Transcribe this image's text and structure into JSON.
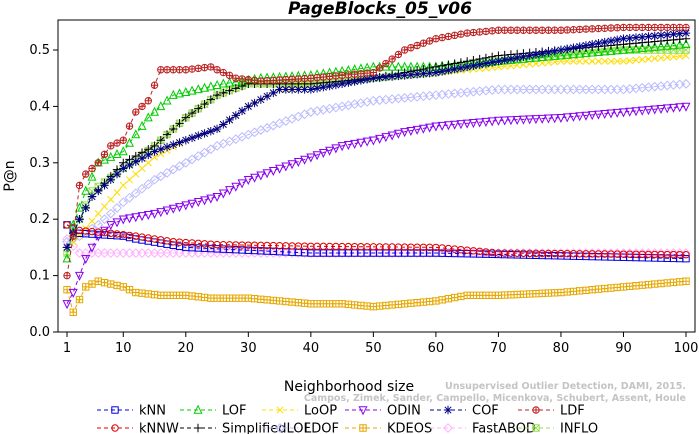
{
  "chart_data": {
    "type": "line",
    "title": "PageBlocks_05_v06",
    "xlabel": "Neighborhood size",
    "ylabel": "P@n",
    "xlim": [
      1,
      100
    ],
    "ylim": [
      0,
      0.55
    ],
    "x_ticks": [
      "1",
      "10",
      "20",
      "30",
      "40",
      "50",
      "60",
      "70",
      "80",
      "90",
      "100"
    ],
    "y_ticks": [
      "0.0",
      "0.1",
      "0.2",
      "0.3",
      "0.4",
      "0.5"
    ],
    "watermark": [
      "Unsupervised Outlier Detection, DAMI, 2015.",
      "Campos, Zimek, Sander, Campello, Micenkova, Schubert, Assent, Houle"
    ],
    "series": [
      {
        "name": "kNN",
        "color": "#0000dd",
        "marker": "square",
        "anchors": [
          [
            1,
            0.19
          ],
          [
            3,
            0.175
          ],
          [
            10,
            0.17
          ],
          [
            12,
            0.165
          ],
          [
            20,
            0.15
          ],
          [
            30,
            0.145
          ],
          [
            40,
            0.14
          ],
          [
            60,
            0.14
          ],
          [
            80,
            0.135
          ],
          [
            100,
            0.13
          ]
        ]
      },
      {
        "name": "kNNW",
        "color": "#dd0000",
        "marker": "circle",
        "anchors": [
          [
            1,
            0.19
          ],
          [
            3,
            0.18
          ],
          [
            8,
            0.175
          ],
          [
            12,
            0.17
          ],
          [
            18,
            0.16
          ],
          [
            25,
            0.155
          ],
          [
            40,
            0.152
          ],
          [
            60,
            0.15
          ],
          [
            70,
            0.14
          ],
          [
            100,
            0.137
          ]
        ]
      },
      {
        "name": "LOF",
        "color": "#00cc00",
        "marker": "triangle",
        "anchors": [
          [
            1,
            0.13
          ],
          [
            2,
            0.19
          ],
          [
            4,
            0.25
          ],
          [
            6,
            0.3
          ],
          [
            10,
            0.32
          ],
          [
            14,
            0.38
          ],
          [
            18,
            0.42
          ],
          [
            22,
            0.43
          ],
          [
            26,
            0.44
          ],
          [
            32,
            0.45
          ],
          [
            40,
            0.455
          ],
          [
            50,
            0.47
          ],
          [
            60,
            0.47
          ],
          [
            70,
            0.48
          ],
          [
            80,
            0.49
          ],
          [
            90,
            0.5
          ],
          [
            100,
            0.51
          ]
        ]
      },
      {
        "name": "SimplifiedLOF",
        "color": "#000000",
        "marker": "plus",
        "anchors": [
          [
            1,
            0.15
          ],
          [
            3,
            0.2
          ],
          [
            5,
            0.24
          ],
          [
            10,
            0.3
          ],
          [
            15,
            0.33
          ],
          [
            20,
            0.38
          ],
          [
            25,
            0.42
          ],
          [
            30,
            0.44
          ],
          [
            40,
            0.44
          ],
          [
            50,
            0.45
          ],
          [
            60,
            0.47
          ],
          [
            70,
            0.49
          ],
          [
            80,
            0.5
          ],
          [
            90,
            0.51
          ],
          [
            100,
            0.52
          ]
        ]
      },
      {
        "name": "LoOP",
        "color": "#ffdd00",
        "marker": "x",
        "anchors": [
          [
            1,
            0.15
          ],
          [
            3,
            0.17
          ],
          [
            6,
            0.21
          ],
          [
            10,
            0.26
          ],
          [
            15,
            0.31
          ],
          [
            20,
            0.34
          ],
          [
            25,
            0.36
          ],
          [
            30,
            0.4
          ],
          [
            35,
            0.43
          ],
          [
            40,
            0.44
          ],
          [
            50,
            0.45
          ],
          [
            60,
            0.46
          ],
          [
            70,
            0.47
          ],
          [
            80,
            0.48
          ],
          [
            90,
            0.48
          ],
          [
            100,
            0.49
          ]
        ]
      },
      {
        "name": "LDOF",
        "color": "#bbbbff",
        "marker": "diamond",
        "anchors": [
          [
            1,
            0.16
          ],
          [
            3,
            0.17
          ],
          [
            6,
            0.19
          ],
          [
            10,
            0.23
          ],
          [
            15,
            0.27
          ],
          [
            20,
            0.3
          ],
          [
            25,
            0.33
          ],
          [
            30,
            0.35
          ],
          [
            35,
            0.37
          ],
          [
            40,
            0.39
          ],
          [
            45,
            0.4
          ],
          [
            50,
            0.41
          ],
          [
            60,
            0.42
          ],
          [
            70,
            0.43
          ],
          [
            80,
            0.43
          ],
          [
            90,
            0.43
          ],
          [
            100,
            0.44
          ]
        ]
      },
      {
        "name": "ODIN",
        "color": "#8800ee",
        "marker": "tri-down",
        "anchors": [
          [
            1,
            0.05
          ],
          [
            2,
            0.07
          ],
          [
            4,
            0.13
          ],
          [
            6,
            0.17
          ],
          [
            8,
            0.19
          ],
          [
            10,
            0.2
          ],
          [
            15,
            0.21
          ],
          [
            20,
            0.225
          ],
          [
            25,
            0.24
          ],
          [
            30,
            0.27
          ],
          [
            35,
            0.29
          ],
          [
            40,
            0.31
          ],
          [
            45,
            0.33
          ],
          [
            50,
            0.34
          ],
          [
            55,
            0.355
          ],
          [
            60,
            0.365
          ],
          [
            70,
            0.375
          ],
          [
            80,
            0.38
          ],
          [
            90,
            0.39
          ],
          [
            100,
            0.4
          ]
        ]
      },
      {
        "name": "KDEOS",
        "color": "#e6a800",
        "marker": "boxplus",
        "anchors": [
          [
            1,
            0.075
          ],
          [
            2,
            0.035
          ],
          [
            4,
            0.08
          ],
          [
            6,
            0.09
          ],
          [
            8,
            0.085
          ],
          [
            10,
            0.08
          ],
          [
            12,
            0.07
          ],
          [
            16,
            0.065
          ],
          [
            20,
            0.065
          ],
          [
            24,
            0.06
          ],
          [
            30,
            0.06
          ],
          [
            35,
            0.055
          ],
          [
            40,
            0.05
          ],
          [
            45,
            0.05
          ],
          [
            50,
            0.045
          ],
          [
            55,
            0.05
          ],
          [
            60,
            0.055
          ],
          [
            65,
            0.065
          ],
          [
            70,
            0.065
          ],
          [
            80,
            0.07
          ],
          [
            85,
            0.075
          ],
          [
            90,
            0.08
          ],
          [
            95,
            0.085
          ],
          [
            100,
            0.09
          ]
        ]
      },
      {
        "name": "COF",
        "color": "#000088",
        "marker": "star",
        "anchors": [
          [
            1,
            0.15
          ],
          [
            3,
            0.2
          ],
          [
            5,
            0.24
          ],
          [
            10,
            0.29
          ],
          [
            15,
            0.32
          ],
          [
            20,
            0.34
          ],
          [
            25,
            0.36
          ],
          [
            30,
            0.4
          ],
          [
            35,
            0.43
          ],
          [
            40,
            0.43
          ],
          [
            50,
            0.45
          ],
          [
            60,
            0.46
          ],
          [
            70,
            0.48
          ],
          [
            80,
            0.5
          ],
          [
            90,
            0.52
          ],
          [
            100,
            0.53
          ]
        ]
      },
      {
        "name": "FastABOD",
        "color": "#ffb0ff",
        "marker": "diamond",
        "anchors": [
          [
            1,
            0.165
          ],
          [
            3,
            0.14
          ],
          [
            10,
            0.14
          ],
          [
            20,
            0.14
          ],
          [
            40,
            0.14
          ],
          [
            60,
            0.14
          ],
          [
            80,
            0.14
          ],
          [
            100,
            0.14
          ]
        ]
      },
      {
        "name": "LDF",
        "color": "#bb2222",
        "marker": "circleplus",
        "anchors": [
          [
            1,
            0.1
          ],
          [
            2,
            0.17
          ],
          [
            3,
            0.26
          ],
          [
            4,
            0.28
          ],
          [
            6,
            0.3
          ],
          [
            8,
            0.33
          ],
          [
            10,
            0.34
          ],
          [
            12,
            0.39
          ],
          [
            14,
            0.41
          ],
          [
            16,
            0.465
          ],
          [
            20,
            0.465
          ],
          [
            24,
            0.47
          ],
          [
            28,
            0.45
          ],
          [
            32,
            0.445
          ],
          [
            40,
            0.45
          ],
          [
            45,
            0.455
          ],
          [
            50,
            0.46
          ],
          [
            55,
            0.5
          ],
          [
            60,
            0.52
          ],
          [
            65,
            0.53
          ],
          [
            70,
            0.535
          ],
          [
            80,
            0.535
          ],
          [
            90,
            0.54
          ],
          [
            100,
            0.54
          ]
        ]
      },
      {
        "name": "INFLO",
        "color": "#99dd55",
        "marker": "boxx",
        "anchors": [
          [
            1,
            0.14
          ],
          [
            3,
            0.2
          ],
          [
            5,
            0.25
          ],
          [
            10,
            0.29
          ],
          [
            15,
            0.33
          ],
          [
            20,
            0.38
          ],
          [
            25,
            0.42
          ],
          [
            30,
            0.44
          ],
          [
            40,
            0.44
          ],
          [
            50,
            0.45
          ],
          [
            60,
            0.46
          ],
          [
            70,
            0.48
          ],
          [
            80,
            0.49
          ],
          [
            90,
            0.5
          ],
          [
            100,
            0.5
          ]
        ]
      }
    ],
    "legend_order": [
      "kNN",
      "kNNW",
      "LOF",
      "SimplifiedLOF",
      "LoOP",
      "LDOF",
      "ODIN",
      "KDEOS",
      "COF",
      "FastABOD",
      "LDF",
      "INFLO"
    ],
    "legend_placement": "bottom",
    "grid": false
  }
}
